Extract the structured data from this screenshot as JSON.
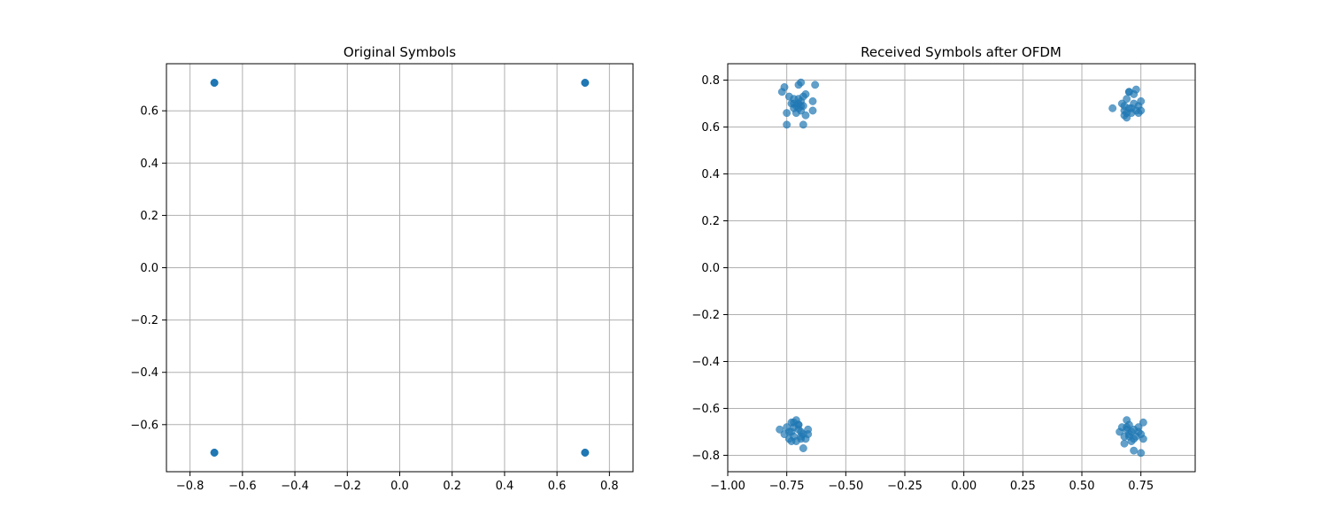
{
  "chart_data": [
    {
      "type": "scatter",
      "title": "Original Symbols",
      "xlabel": "",
      "ylabel": "",
      "xlim": [
        -0.89,
        0.89
      ],
      "ylim": [
        -0.78,
        0.78
      ],
      "xticks": [
        -0.8,
        -0.6,
        -0.4,
        -0.2,
        0.0,
        0.2,
        0.4,
        0.6,
        0.8
      ],
      "xtick_labels": [
        "−0.8",
        "−0.6",
        "−0.4",
        "−0.2",
        "0.0",
        "0.2",
        "0.4",
        "0.6",
        "0.8"
      ],
      "yticks": [
        -0.6,
        -0.4,
        -0.2,
        0.0,
        0.2,
        0.4,
        0.6
      ],
      "ytick_labels": [
        "−0.6",
        "−0.4",
        "−0.2",
        "0.0",
        "0.2",
        "0.4",
        "0.6"
      ],
      "grid": true,
      "color": "#1f77b4",
      "series": [
        {
          "x": [
            -0.7071,
            0.7071,
            -0.7071,
            0.7071,
            -0.7071,
            0.7071,
            -0.7071,
            0.7071
          ],
          "y": [
            0.7071,
            0.7071,
            -0.7071,
            -0.7071,
            0.7071,
            0.7071,
            -0.7071,
            -0.7071
          ]
        }
      ]
    },
    {
      "type": "scatter",
      "title": "Received Symbols after OFDM",
      "xlabel": "",
      "ylabel": "",
      "xlim": [
        -1.0,
        0.98
      ],
      "ylim": [
        -0.87,
        0.87
      ],
      "xticks": [
        -1.0,
        -0.75,
        -0.5,
        -0.25,
        0.0,
        0.25,
        0.5,
        0.75
      ],
      "xtick_labels": [
        "−1.00",
        "−0.75",
        "−0.50",
        "−0.25",
        "0.00",
        "0.25",
        "0.50",
        "0.75"
      ],
      "yticks": [
        -0.8,
        -0.6,
        -0.4,
        -0.2,
        0.0,
        0.2,
        0.4,
        0.6,
        0.8
      ],
      "ytick_labels": [
        "−0.8",
        "−0.6",
        "−0.4",
        "−0.2",
        "0.0",
        "0.2",
        "0.4",
        "0.6",
        "0.8"
      ],
      "grid": true,
      "color": "#1f77b4",
      "series": [
        {
          "x": [
            -0.77,
            -0.76,
            -0.74,
            -0.73,
            -0.72,
            -0.72,
            -0.71,
            -0.71,
            -0.7,
            -0.7,
            -0.69,
            -0.69,
            -0.68,
            -0.68,
            -0.68,
            -0.67,
            -0.67,
            -0.64,
            -0.64,
            -0.63,
            -0.75,
            -0.75,
            -0.69,
            -0.7,
            -0.72,
            -0.7,
            -0.69,
            0.63,
            0.67,
            0.68,
            0.68,
            0.69,
            0.69,
            0.7,
            0.7,
            0.71,
            0.72,
            0.72,
            0.73,
            0.74,
            0.74,
            0.75,
            0.75,
            0.68,
            0.69,
            0.71,
            0.7,
            0.73,
            -0.78,
            -0.76,
            -0.75,
            -0.74,
            -0.73,
            -0.73,
            -0.72,
            -0.72,
            -0.71,
            -0.71,
            -0.7,
            -0.7,
            -0.69,
            -0.69,
            -0.68,
            -0.68,
            -0.67,
            -0.66,
            -0.66,
            -0.73,
            -0.7,
            -0.72,
            -0.74,
            -0.69,
            0.66,
            0.67,
            0.68,
            0.68,
            0.69,
            0.69,
            0.7,
            0.7,
            0.71,
            0.71,
            0.72,
            0.72,
            0.73,
            0.74,
            0.75,
            0.75,
            0.76,
            0.76,
            0.7,
            0.72,
            0.74,
            0.69
          ],
          "y": [
            0.75,
            0.77,
            0.73,
            0.7,
            0.68,
            0.72,
            0.69,
            0.66,
            0.7,
            0.78,
            0.67,
            0.71,
            0.73,
            0.61,
            0.69,
            0.74,
            0.65,
            0.71,
            0.67,
            0.78,
            0.66,
            0.61,
            0.79,
            0.68,
            0.7,
            0.72,
            0.69,
            0.68,
            0.7,
            0.65,
            0.67,
            0.64,
            0.72,
            0.75,
            0.68,
            0.66,
            0.7,
            0.74,
            0.76,
            0.69,
            0.66,
            0.71,
            0.67,
            0.69,
            0.66,
            0.68,
            0.75,
            0.67,
            -0.69,
            -0.71,
            -0.68,
            -0.73,
            -0.7,
            -0.66,
            -0.72,
            -0.68,
            -0.65,
            -0.74,
            -0.69,
            -0.67,
            -0.73,
            -0.7,
            -0.71,
            -0.77,
            -0.73,
            -0.69,
            -0.71,
            -0.74,
            -0.67,
            -0.66,
            -0.7,
            -0.72,
            -0.7,
            -0.68,
            -0.72,
            -0.75,
            -0.65,
            -0.69,
            -0.67,
            -0.71,
            -0.74,
            -0.7,
            -0.73,
            -0.78,
            -0.72,
            -0.68,
            -0.79,
            -0.71,
            -0.66,
            -0.73,
            -0.72,
            -0.69,
            -0.7,
            -0.68
          ]
        }
      ]
    }
  ]
}
